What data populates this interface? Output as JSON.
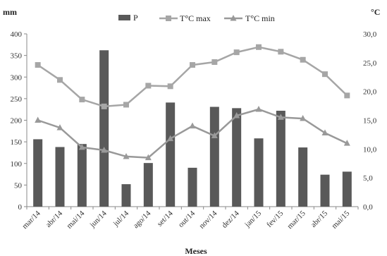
{
  "chart_data": {
    "type": "bar",
    "categories": [
      "mar/14",
      "abr/14",
      "mai/14",
      "jun/14",
      "jul/14",
      "ago/14",
      "set/14",
      "out/14",
      "nov/14",
      "dez/14",
      "jan/15",
      "fev/15",
      "mar/15",
      "abr/15",
      "mai/15"
    ],
    "series": [
      {
        "name": "P",
        "type": "bar",
        "axis": "left",
        "color": "#595959",
        "values": [
          156,
          138,
          145,
          362,
          52,
          101,
          241,
          90,
          231,
          228,
          158,
          222,
          137,
          74,
          81
        ]
      },
      {
        "name": "T°C max",
        "type": "line",
        "axis": "right",
        "color": "#a6a6a6",
        "marker": "square",
        "values": [
          24.6,
          22.0,
          18.6,
          17.4,
          17.7,
          21.0,
          20.9,
          24.6,
          25.1,
          26.8,
          27.7,
          26.9,
          25.5,
          23.0,
          19.3
        ]
      },
      {
        "name": "T°C min",
        "type": "line",
        "axis": "right",
        "color": "#999999",
        "marker": "triangle",
        "values": [
          15.0,
          13.7,
          10.3,
          9.8,
          8.7,
          8.5,
          11.8,
          14.0,
          12.3,
          15.8,
          16.9,
          15.5,
          15.3,
          12.8,
          11.0
        ]
      }
    ],
    "left_axis": {
      "label": "mm",
      "range": [
        0,
        400
      ],
      "ticks": [
        "0",
        "50",
        "100",
        "150",
        "200",
        "250",
        "300",
        "350",
        "400"
      ]
    },
    "right_axis": {
      "label": "°C",
      "range": [
        0,
        30
      ],
      "ticks": [
        "0,0",
        "5,0",
        "10,0",
        "15,0",
        "20,0",
        "25,0",
        "30,0"
      ]
    },
    "xlabel": "Meses",
    "legend": "top-center",
    "grid": false
  }
}
